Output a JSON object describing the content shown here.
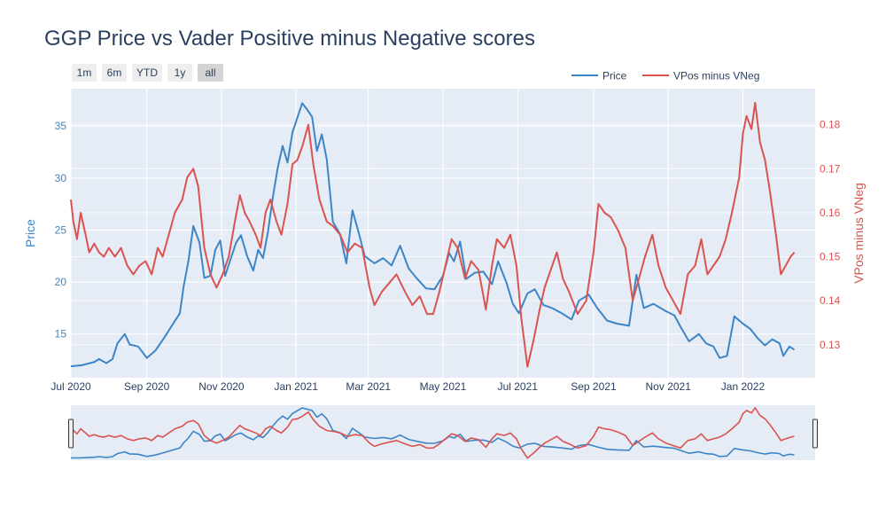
{
  "chart_data": {
    "type": "line",
    "title": "GGP Price vs Vader Positive minus Negative scores",
    "xlabel": "",
    "ylabel": "Price",
    "y2label": "VPos minus VNeg",
    "xlim": [
      "2020-07-01",
      "2022-03-01"
    ],
    "ylim": [
      10.8,
      38.6
    ],
    "y2lim": [
      0.1225,
      0.1882
    ],
    "x_ticks": [
      {
        "date": "2020-07-01",
        "label": "Jul 2020"
      },
      {
        "date": "2020-09-01",
        "label": "Sep 2020"
      },
      {
        "date": "2020-11-01",
        "label": "Nov 2020"
      },
      {
        "date": "2021-01-01",
        "label": "Jan 2021"
      },
      {
        "date": "2021-03-01",
        "label": "Mar 2021"
      },
      {
        "date": "2021-05-01",
        "label": "May 2021"
      },
      {
        "date": "2021-07-01",
        "label": "Jul 2021"
      },
      {
        "date": "2021-09-01",
        "label": "Sep 2021"
      },
      {
        "date": "2021-11-01",
        "label": "Nov 2021"
      },
      {
        "date": "2022-01-01",
        "label": "Jan 2022"
      }
    ],
    "y_ticks": [
      15,
      20,
      25,
      30,
      35
    ],
    "y2_ticks": [
      0.13,
      0.14,
      0.15,
      0.16,
      0.17,
      0.18
    ],
    "grid": true,
    "legend_position": "top-right",
    "series": [
      {
        "name": "Price",
        "axis": "left",
        "color": "#3d85c6",
        "points": [
          [
            "2020-07-01",
            11.9
          ],
          [
            "2020-07-10",
            12.0
          ],
          [
            "2020-07-20",
            12.3
          ],
          [
            "2020-07-24",
            12.6
          ],
          [
            "2020-07-30",
            12.2
          ],
          [
            "2020-08-04",
            12.6
          ],
          [
            "2020-08-08",
            14.1
          ],
          [
            "2020-08-14",
            15.0
          ],
          [
            "2020-08-18",
            14.0
          ],
          [
            "2020-08-25",
            13.8
          ],
          [
            "2020-09-01",
            12.7
          ],
          [
            "2020-09-08",
            13.4
          ],
          [
            "2020-09-15",
            14.6
          ],
          [
            "2020-09-22",
            15.9
          ],
          [
            "2020-09-28",
            17.0
          ],
          [
            "2020-10-01",
            19.5
          ],
          [
            "2020-10-05",
            22.0
          ],
          [
            "2020-10-09",
            25.4
          ],
          [
            "2020-10-14",
            23.8
          ],
          [
            "2020-10-18",
            20.4
          ],
          [
            "2020-10-23",
            20.6
          ],
          [
            "2020-10-27",
            23.1
          ],
          [
            "2020-10-31",
            24.0
          ],
          [
            "2020-11-04",
            20.6
          ],
          [
            "2020-11-09",
            22.4
          ],
          [
            "2020-11-13",
            23.8
          ],
          [
            "2020-11-17",
            24.5
          ],
          [
            "2020-11-22",
            22.5
          ],
          [
            "2020-11-27",
            21.1
          ],
          [
            "2020-12-01",
            23.1
          ],
          [
            "2020-12-05",
            22.3
          ],
          [
            "2020-12-09",
            24.8
          ],
          [
            "2020-12-13",
            28.2
          ],
          [
            "2020-12-17",
            31.0
          ],
          [
            "2020-12-21",
            33.1
          ],
          [
            "2020-12-25",
            31.5
          ],
          [
            "2020-12-29",
            34.4
          ],
          [
            "2021-01-02",
            35.8
          ],
          [
            "2021-01-06",
            37.2
          ],
          [
            "2021-01-10",
            36.6
          ],
          [
            "2021-01-14",
            35.9
          ],
          [
            "2021-01-18",
            32.6
          ],
          [
            "2021-01-22",
            34.2
          ],
          [
            "2021-01-26",
            31.8
          ],
          [
            "2021-01-31",
            25.8
          ],
          [
            "2021-02-06",
            24.6
          ],
          [
            "2021-02-11",
            21.8
          ],
          [
            "2021-02-16",
            26.9
          ],
          [
            "2021-02-21",
            24.8
          ],
          [
            "2021-02-26",
            22.5
          ],
          [
            "2021-03-06",
            21.8
          ],
          [
            "2021-03-13",
            22.3
          ],
          [
            "2021-03-20",
            21.6
          ],
          [
            "2021-03-27",
            23.5
          ],
          [
            "2021-04-03",
            21.3
          ],
          [
            "2021-04-10",
            20.3
          ],
          [
            "2021-04-17",
            19.4
          ],
          [
            "2021-04-24",
            19.3
          ],
          [
            "2021-05-01",
            20.6
          ],
          [
            "2021-05-06",
            22.8
          ],
          [
            "2021-05-10",
            22.0
          ],
          [
            "2021-05-15",
            23.9
          ],
          [
            "2021-05-20",
            20.3
          ],
          [
            "2021-05-27",
            20.9
          ],
          [
            "2021-06-03",
            21.0
          ],
          [
            "2021-06-10",
            19.8
          ],
          [
            "2021-06-15",
            22.0
          ],
          [
            "2021-06-22",
            19.9
          ],
          [
            "2021-06-27",
            17.9
          ],
          [
            "2021-07-02",
            17.0
          ],
          [
            "2021-07-09",
            18.9
          ],
          [
            "2021-07-15",
            19.3
          ],
          [
            "2021-07-22",
            17.8
          ],
          [
            "2021-07-29",
            17.5
          ],
          [
            "2021-08-06",
            17.0
          ],
          [
            "2021-08-14",
            16.4
          ],
          [
            "2021-08-20",
            18.2
          ],
          [
            "2021-08-28",
            18.8
          ],
          [
            "2021-09-04",
            17.5
          ],
          [
            "2021-09-12",
            16.3
          ],
          [
            "2021-09-20",
            16.0
          ],
          [
            "2021-09-30",
            15.8
          ],
          [
            "2021-10-06",
            20.7
          ],
          [
            "2021-10-12",
            17.5
          ],
          [
            "2021-10-20",
            17.9
          ],
          [
            "2021-10-30",
            17.2
          ],
          [
            "2021-11-06",
            16.8
          ],
          [
            "2021-11-12",
            15.5
          ],
          [
            "2021-11-18",
            14.3
          ],
          [
            "2021-11-26",
            15.0
          ],
          [
            "2021-12-02",
            14.1
          ],
          [
            "2021-12-08",
            13.8
          ],
          [
            "2021-12-13",
            12.7
          ],
          [
            "2021-12-19",
            12.9
          ],
          [
            "2021-12-25",
            16.7
          ],
          [
            "2022-01-01",
            16.0
          ],
          [
            "2022-01-07",
            15.5
          ],
          [
            "2022-01-13",
            14.6
          ],
          [
            "2022-01-19",
            13.9
          ],
          [
            "2022-01-25",
            14.5
          ],
          [
            "2022-01-31",
            14.1
          ],
          [
            "2022-02-03",
            12.9
          ],
          [
            "2022-02-08",
            13.8
          ],
          [
            "2022-02-12",
            13.5
          ]
        ]
      },
      {
        "name": "VPos minus VNeg",
        "axis": "right",
        "color": "#d9534f",
        "points": [
          [
            "2020-07-01",
            0.163
          ],
          [
            "2020-07-03",
            0.158
          ],
          [
            "2020-07-06",
            0.154
          ],
          [
            "2020-07-09",
            0.16
          ],
          [
            "2020-07-13",
            0.155
          ],
          [
            "2020-07-16",
            0.151
          ],
          [
            "2020-07-20",
            0.153
          ],
          [
            "2020-07-24",
            0.151
          ],
          [
            "2020-07-28",
            0.15
          ],
          [
            "2020-08-01",
            0.152
          ],
          [
            "2020-08-06",
            0.15
          ],
          [
            "2020-08-11",
            0.152
          ],
          [
            "2020-08-16",
            0.148
          ],
          [
            "2020-08-21",
            0.146
          ],
          [
            "2020-08-26",
            0.148
          ],
          [
            "2020-08-31",
            0.149
          ],
          [
            "2020-09-05",
            0.146
          ],
          [
            "2020-09-10",
            0.152
          ],
          [
            "2020-09-14",
            0.15
          ],
          [
            "2020-09-19",
            0.155
          ],
          [
            "2020-09-24",
            0.16
          ],
          [
            "2020-09-30",
            0.163
          ],
          [
            "2020-10-04",
            0.168
          ],
          [
            "2020-10-09",
            0.17
          ],
          [
            "2020-10-13",
            0.166
          ],
          [
            "2020-10-18",
            0.152
          ],
          [
            "2020-10-23",
            0.146
          ],
          [
            "2020-10-28",
            0.143
          ],
          [
            "2020-11-02",
            0.146
          ],
          [
            "2020-11-07",
            0.15
          ],
          [
            "2020-11-12",
            0.158
          ],
          [
            "2020-11-16",
            0.164
          ],
          [
            "2020-11-20",
            0.16
          ],
          [
            "2020-11-24",
            0.158
          ],
          [
            "2020-11-29",
            0.155
          ],
          [
            "2020-12-03",
            0.152
          ],
          [
            "2020-12-07",
            0.16
          ],
          [
            "2020-12-11",
            0.163
          ],
          [
            "2020-12-16",
            0.158
          ],
          [
            "2020-12-20",
            0.155
          ],
          [
            "2020-12-25",
            0.162
          ],
          [
            "2020-12-29",
            0.171
          ],
          [
            "2021-01-02",
            0.172
          ],
          [
            "2021-01-06",
            0.175
          ],
          [
            "2021-01-11",
            0.18
          ],
          [
            "2021-01-15",
            0.171
          ],
          [
            "2021-01-20",
            0.163
          ],
          [
            "2021-01-26",
            0.158
          ],
          [
            "2021-01-31",
            0.157
          ],
          [
            "2021-02-06",
            0.155
          ],
          [
            "2021-02-12",
            0.151
          ],
          [
            "2021-02-18",
            0.153
          ],
          [
            "2021-02-24",
            0.152
          ],
          [
            "2021-03-02",
            0.143
          ],
          [
            "2021-03-06",
            0.139
          ],
          [
            "2021-03-12",
            0.142
          ],
          [
            "2021-03-18",
            0.144
          ],
          [
            "2021-03-24",
            0.146
          ],
          [
            "2021-03-31",
            0.142
          ],
          [
            "2021-04-06",
            0.139
          ],
          [
            "2021-04-12",
            0.141
          ],
          [
            "2021-04-18",
            0.137
          ],
          [
            "2021-04-23",
            0.137
          ],
          [
            "2021-04-28",
            0.142
          ],
          [
            "2021-05-03",
            0.148
          ],
          [
            "2021-05-08",
            0.154
          ],
          [
            "2021-05-13",
            0.152
          ],
          [
            "2021-05-19",
            0.145
          ],
          [
            "2021-05-24",
            0.149
          ],
          [
            "2021-05-30",
            0.147
          ],
          [
            "2021-06-05",
            0.138
          ],
          [
            "2021-06-10",
            0.148
          ],
          [
            "2021-06-14",
            0.154
          ],
          [
            "2021-06-20",
            0.152
          ],
          [
            "2021-06-25",
            0.155
          ],
          [
            "2021-06-30",
            0.148
          ],
          [
            "2021-07-04",
            0.136
          ],
          [
            "2021-07-09",
            0.125
          ],
          [
            "2021-07-14",
            0.131
          ],
          [
            "2021-07-19",
            0.138
          ],
          [
            "2021-07-23",
            0.143
          ],
          [
            "2021-07-28",
            0.147
          ],
          [
            "2021-08-02",
            0.151
          ],
          [
            "2021-08-07",
            0.145
          ],
          [
            "2021-08-12",
            0.142
          ],
          [
            "2021-08-19",
            0.137
          ],
          [
            "2021-08-26",
            0.14
          ],
          [
            "2021-09-01",
            0.151
          ],
          [
            "2021-09-05",
            0.162
          ],
          [
            "2021-09-10",
            0.16
          ],
          [
            "2021-09-15",
            0.159
          ],
          [
            "2021-09-21",
            0.156
          ],
          [
            "2021-09-27",
            0.152
          ],
          [
            "2021-10-03",
            0.14
          ],
          [
            "2021-10-08",
            0.145
          ],
          [
            "2021-10-13",
            0.15
          ],
          [
            "2021-10-19",
            0.155
          ],
          [
            "2021-10-24",
            0.148
          ],
          [
            "2021-10-30",
            0.143
          ],
          [
            "2021-11-05",
            0.14
          ],
          [
            "2021-11-11",
            0.137
          ],
          [
            "2021-11-17",
            0.146
          ],
          [
            "2021-11-23",
            0.148
          ],
          [
            "2021-11-28",
            0.154
          ],
          [
            "2021-12-03",
            0.146
          ],
          [
            "2021-12-08",
            0.148
          ],
          [
            "2021-12-13",
            0.15
          ],
          [
            "2021-12-18",
            0.154
          ],
          [
            "2021-12-23",
            0.16
          ],
          [
            "2021-12-29",
            0.168
          ],
          [
            "2022-01-01",
            0.178
          ],
          [
            "2022-01-04",
            0.182
          ],
          [
            "2022-01-08",
            0.179
          ],
          [
            "2022-01-11",
            0.185
          ],
          [
            "2022-01-15",
            0.176
          ],
          [
            "2022-01-19",
            0.172
          ],
          [
            "2022-01-23",
            0.165
          ],
          [
            "2022-01-28",
            0.155
          ],
          [
            "2022-02-01",
            0.146
          ],
          [
            "2022-02-05",
            0.148
          ],
          [
            "2022-02-09",
            0.15
          ],
          [
            "2022-02-12",
            0.151
          ]
        ]
      }
    ]
  },
  "range_selector": {
    "buttons": [
      "1m",
      "6m",
      "YTD",
      "1y",
      "all"
    ],
    "active": "all"
  },
  "colors": {
    "plot_bg": "#e5ecf6",
    "grid": "#ffffff",
    "title": "#2a3f5f",
    "price": "#3d85c6",
    "sentiment": "#d9534f",
    "button_bg": "#eeeeee",
    "button_active_bg": "#d4d4d4"
  }
}
